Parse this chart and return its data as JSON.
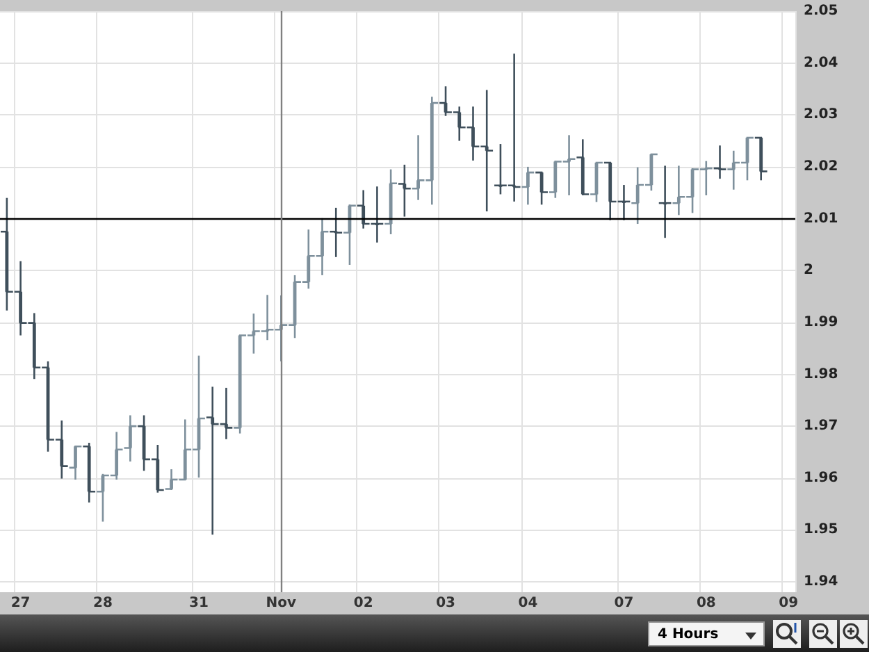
{
  "chart_data": {
    "type": "candlestick",
    "colors": [
      "#3f4f5b",
      "#3f4f5b",
      "#3f4f5b",
      "#3f4f5b",
      "#3f4f5b",
      "#7e909c",
      "#3f4f5b",
      "#7e909c",
      "#7e909c",
      "#7e909c",
      "#3f4f5b",
      "#3f4f5b",
      "#7e909c",
      "#7e909c",
      "#7e909c",
      "#3f4f5b",
      "#3f4f5b",
      "#7e909c",
      "#7e909c",
      "#7e909c",
      "#7e909c",
      "#7e909c",
      "#7e909c",
      "#7e909c",
      "#3f4f5b",
      "#7e909c",
      "#3f4f5b",
      "#3f4f5b",
      "#7e909c",
      "#3f4f5b",
      "#7e909c",
      "#7e909c",
      "#3f4f5b",
      "#3f4f5b",
      "#3f4f5b",
      "#3f4f5b",
      "#3f4f5b",
      "#3f4f5b",
      "#7e909c",
      "#3f4f5b",
      "#7e909c",
      "#7e909c",
      "#3f4f5b",
      "#7e909c",
      "#3f4f5b",
      "#3f4f5b",
      "#7e909c",
      "#7e909c",
      "#3f4f5b",
      "#7e909c",
      "#7e909c",
      "#7e909c",
      "#3f4f5b",
      "#7e909c",
      "#7e909c",
      "#3f4f5b",
      null,
      null
    ],
    "categories": [
      null,
      "27",
      null,
      null,
      null,
      null,
      null,
      "28",
      null,
      null,
      null,
      null,
      null,
      null,
      "31",
      null,
      null,
      null,
      null,
      null,
      "Nov",
      null,
      null,
      null,
      null,
      null,
      "02",
      null,
      null,
      null,
      null,
      null,
      "03",
      null,
      null,
      null,
      null,
      null,
      "04",
      null,
      null,
      null,
      null,
      null,
      null,
      "07",
      null,
      null,
      null,
      null,
      null,
      "08",
      null,
      null,
      null,
      null,
      null,
      "09"
    ],
    "ohlc": [
      [
        2.0075,
        2.014,
        1.9923,
        1.9959
      ],
      [
        1.9959,
        2.0018,
        1.9875,
        1.9899
      ],
      [
        1.9899,
        1.9918,
        1.9791,
        1.9813
      ],
      [
        1.9813,
        1.9825,
        1.9651,
        1.9674
      ],
      [
        1.9674,
        1.9711,
        1.9599,
        1.9623
      ],
      [
        1.962,
        1.9662,
        1.9597,
        1.9661
      ],
      [
        1.9661,
        1.9668,
        1.9553,
        1.9574
      ],
      [
        1.9574,
        1.9608,
        1.9516,
        1.9605
      ],
      [
        1.9605,
        1.9689,
        1.9597,
        1.9655
      ],
      [
        1.9658,
        1.9721,
        1.9632,
        1.97
      ],
      [
        1.97,
        1.9721,
        1.9614,
        1.9636
      ],
      [
        1.9636,
        1.9664,
        1.9572,
        1.9577
      ],
      [
        1.9579,
        1.9617,
        1.9577,
        1.9597
      ],
      [
        1.9597,
        1.9713,
        1.9597,
        1.9655
      ],
      [
        1.9655,
        1.9836,
        1.9601,
        1.9715
      ],
      [
        1.9717,
        1.9776,
        1.9491,
        1.9704
      ],
      [
        1.9704,
        1.9774,
        1.9675,
        1.9697
      ],
      [
        1.9697,
        1.9875,
        1.9686,
        1.9875
      ],
      [
        1.9875,
        1.9917,
        1.984,
        1.9883
      ],
      [
        1.9883,
        1.9953,
        1.9866,
        1.9886
      ],
      [
        1.9886,
        1.9952,
        1.9825,
        1.9895
      ],
      [
        1.9895,
        1.9991,
        1.987,
        1.9978
      ],
      [
        1.9978,
        2.0079,
        1.9965,
        2.0028
      ],
      [
        2.0028,
        2.0101,
        1.9991,
        2.0075
      ],
      [
        2.0075,
        2.0121,
        2.0026,
        2.0073
      ],
      [
        2.0073,
        2.0127,
        2.0011,
        2.0125
      ],
      [
        2.0125,
        2.0155,
        2.0081,
        2.009
      ],
      [
        2.009,
        2.0162,
        2.0054,
        2.009
      ],
      [
        2.009,
        2.0195,
        2.007,
        2.0168
      ],
      [
        2.0167,
        2.0204,
        2.0104,
        2.0158
      ],
      [
        2.0158,
        2.0261,
        2.0136,
        2.0174
      ],
      [
        2.0174,
        2.0335,
        2.0127,
        2.0323
      ],
      [
        2.0323,
        2.0355,
        2.0298,
        2.0305
      ],
      [
        2.0305,
        2.0316,
        2.025,
        2.0276
      ],
      [
        2.0276,
        2.0316,
        2.0212,
        2.0239
      ],
      [
        2.0239,
        2.0348,
        2.0114,
        2.0231
      ],
      [
        2.0164,
        2.0244,
        2.0147,
        2.0164
      ],
      [
        2.0164,
        2.0418,
        2.0133,
        2.0161
      ],
      [
        2.0161,
        2.02,
        2.0127,
        2.0189
      ],
      [
        2.0189,
        2.0189,
        2.0127,
        2.0151
      ],
      [
        2.0151,
        2.0211,
        2.014,
        2.021
      ],
      [
        2.021,
        2.0261,
        2.0145,
        2.0215
      ],
      [
        2.0218,
        2.0253,
        2.0145,
        2.0147
      ],
      [
        2.0147,
        2.0208,
        2.0132,
        2.0208
      ],
      [
        2.0208,
        2.0208,
        2.0097,
        2.0133
      ],
      [
        2.0133,
        2.0165,
        2.0097,
        2.0133
      ],
      [
        2.013,
        2.0199,
        2.009,
        2.0165
      ],
      [
        2.0165,
        2.0224,
        2.0154,
        2.0224
      ],
      [
        2.013,
        2.0202,
        2.0063,
        2.013
      ],
      [
        2.013,
        2.0202,
        2.0107,
        2.0142
      ],
      [
        2.0142,
        2.0197,
        2.0111,
        2.0195
      ],
      [
        2.0195,
        2.0211,
        2.0145,
        2.0197
      ],
      [
        2.0197,
        2.0241,
        2.0177,
        2.0195
      ],
      [
        2.0195,
        2.0231,
        2.0156,
        2.0208
      ],
      [
        2.0208,
        2.0256,
        2.0174,
        2.0256
      ],
      [
        2.0256,
        2.0256,
        2.0174,
        2.0191
      ],
      null,
      null
    ],
    "ylim": [
      1.938,
      2.05
    ],
    "yticks": [
      1.94,
      1.95,
      1.96,
      1.97,
      1.98,
      1.99,
      2,
      2.01,
      2.02,
      2.03,
      2.04,
      2.05
    ],
    "grid": true,
    "legend": false,
    "ref_lines": [
      {
        "axis": "y",
        "value": 2.01,
        "color": "#000000"
      },
      {
        "axis": "x",
        "value": "Nov",
        "color": "#808080"
      }
    ],
    "annotations": [
      "4 Hours"
    ]
  }
}
